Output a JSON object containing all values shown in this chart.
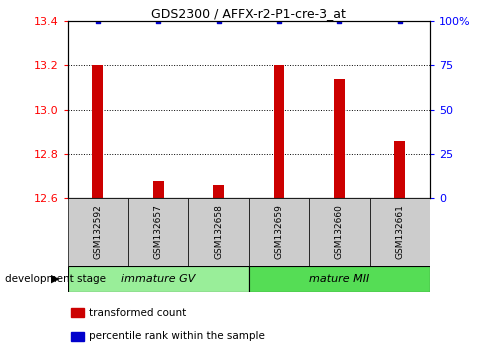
{
  "title": "GDS2300 / AFFX-r2-P1-cre-3_at",
  "samples": [
    "GSM132592",
    "GSM132657",
    "GSM132658",
    "GSM132659",
    "GSM132660",
    "GSM132661"
  ],
  "transformed_counts": [
    13.2,
    12.68,
    12.66,
    13.2,
    13.14,
    12.86
  ],
  "percentile_ranks": [
    100,
    100,
    100,
    100,
    100,
    100
  ],
  "bar_color": "#cc0000",
  "dot_color": "#0000cc",
  "ylim_left": [
    12.6,
    13.4
  ],
  "ylim_right": [
    0,
    100
  ],
  "yticks_left": [
    12.6,
    12.8,
    13.0,
    13.2,
    13.4
  ],
  "yticks_right": [
    0,
    25,
    50,
    75,
    100
  ],
  "ytick_labels_right": [
    "0",
    "25",
    "50",
    "75",
    "100%"
  ],
  "groups": [
    {
      "label": "immature GV",
      "indices": [
        0,
        1,
        2
      ],
      "color": "#99ee99"
    },
    {
      "label": "mature MII",
      "indices": [
        3,
        4,
        5
      ],
      "color": "#55dd55"
    }
  ],
  "group_label_prefix": "development stage",
  "legend": [
    {
      "color": "#cc0000",
      "label": "transformed count"
    },
    {
      "color": "#0000cc",
      "label": "percentile rank within the sample"
    }
  ],
  "bar_width": 0.18,
  "sample_box_color": "#cccccc",
  "grid_color": "#000000"
}
